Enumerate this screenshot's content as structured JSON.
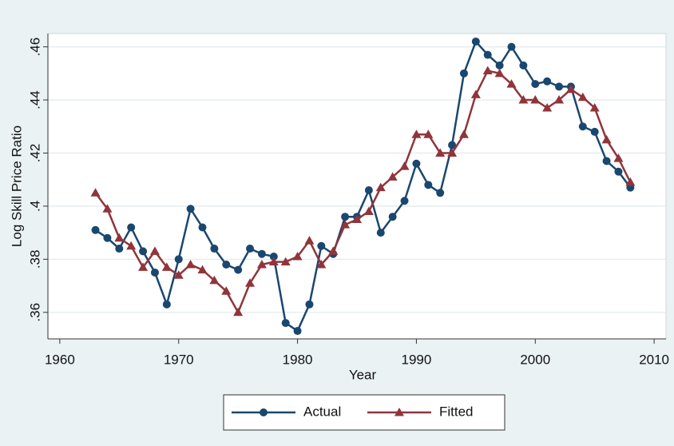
{
  "chart_data": {
    "type": "line",
    "x_label": "Year",
    "y_label": "Log Skill Price Ratio",
    "x": [
      1963,
      1964,
      1965,
      1966,
      1967,
      1968,
      1969,
      1970,
      1971,
      1972,
      1973,
      1974,
      1975,
      1976,
      1977,
      1978,
      1979,
      1980,
      1981,
      1982,
      1983,
      1984,
      1985,
      1986,
      1987,
      1988,
      1989,
      1990,
      1991,
      1992,
      1993,
      1994,
      1995,
      1996,
      1997,
      1998,
      1999,
      2000,
      2001,
      2002,
      2003,
      2004,
      2005,
      2006,
      2007,
      2008
    ],
    "series": [
      {
        "name": "Actual",
        "color": "#1a476f",
        "marker": "circle",
        "values": [
          0.391,
          0.388,
          0.384,
          0.392,
          0.383,
          0.375,
          0.363,
          0.38,
          0.399,
          0.392,
          0.384,
          0.378,
          0.376,
          0.384,
          0.382,
          0.381,
          0.356,
          0.353,
          0.363,
          0.385,
          0.382,
          0.396,
          0.396,
          0.406,
          0.39,
          0.396,
          0.402,
          0.416,
          0.408,
          0.405,
          0.423,
          0.45,
          0.462,
          0.457,
          0.453,
          0.46,
          0.453,
          0.446,
          0.447,
          0.445,
          0.445,
          0.43,
          0.428,
          0.417,
          0.413,
          0.407
        ]
      },
      {
        "name": "Fitted",
        "color": "#90353b",
        "marker": "triangle",
        "values": [
          0.405,
          0.399,
          0.388,
          0.385,
          0.377,
          0.383,
          0.377,
          0.374,
          0.378,
          0.376,
          0.372,
          0.368,
          0.36,
          0.371,
          0.378,
          0.379,
          0.379,
          0.381,
          0.387,
          0.378,
          0.383,
          0.393,
          0.395,
          0.398,
          0.407,
          0.411,
          0.415,
          0.427,
          0.427,
          0.42,
          0.42,
          0.427,
          0.442,
          0.451,
          0.45,
          0.446,
          0.44,
          0.44,
          0.437,
          0.44,
          0.444,
          0.441,
          0.437,
          0.425,
          0.418,
          0.409
        ]
      }
    ],
    "xlim": [
      1959,
      2011
    ],
    "xticks": [
      1960,
      1970,
      1980,
      1990,
      2000,
      2010
    ],
    "ylim": [
      0.35,
      0.465
    ],
    "yticks": [
      {
        "value": 0.36,
        "label": ".36"
      },
      {
        "value": 0.38,
        "label": ".38"
      },
      {
        "value": 0.4,
        "label": ".4"
      },
      {
        "value": 0.42,
        "label": ".42"
      },
      {
        "value": 0.44,
        "label": ".44"
      },
      {
        "value": 0.46,
        "label": ".46"
      }
    ],
    "grid": true,
    "legend": "bottom"
  }
}
